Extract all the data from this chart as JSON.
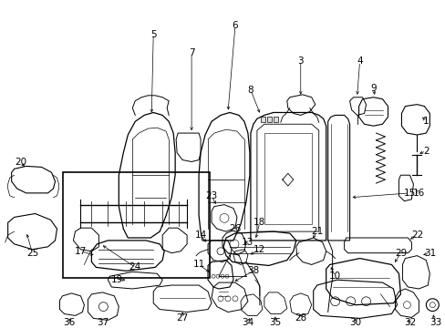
{
  "bg_color": "#ffffff",
  "text_color": "#000000",
  "fig_width": 4.89,
  "fig_height": 3.6,
  "dpi": 100,
  "label_fs": 7.5,
  "lw": 0.7
}
